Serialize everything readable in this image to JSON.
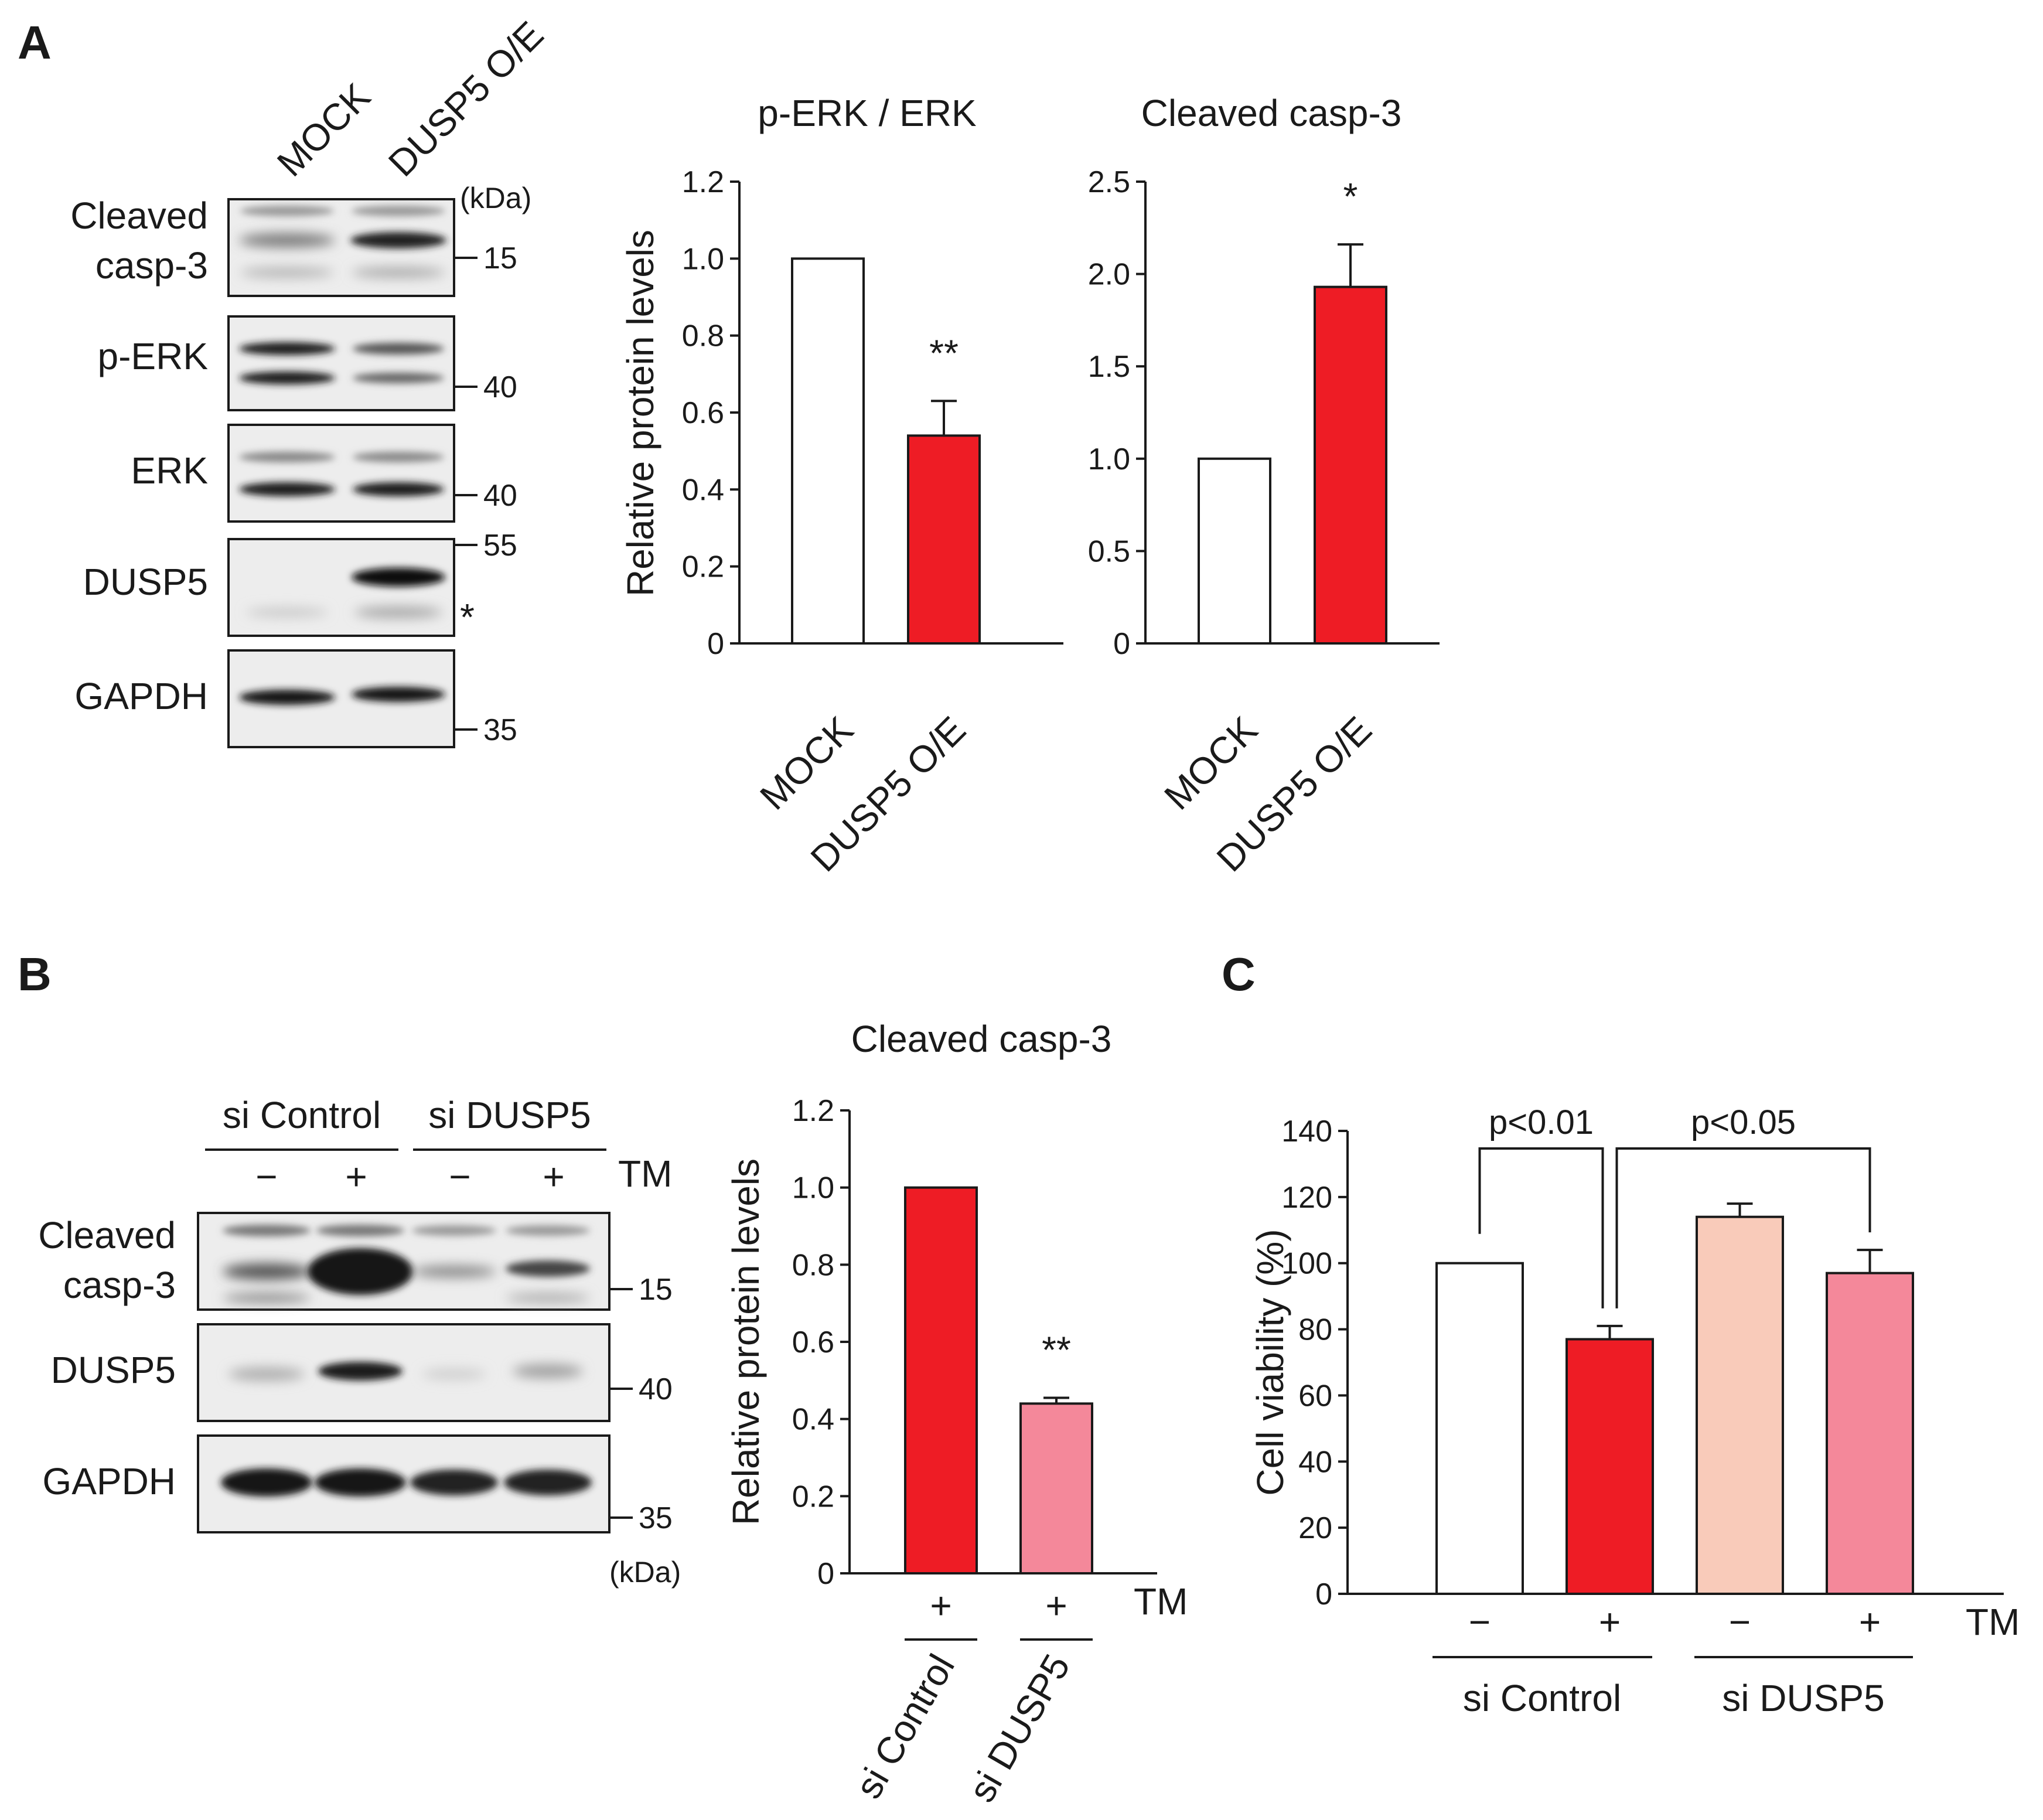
{
  "panelA": {
    "letter": "A",
    "lanes": [
      "MOCK",
      "DUSP5 O/E"
    ],
    "blots": [
      {
        "label_lines": [
          "Cleaved",
          "casp-3"
        ],
        "marker": "15"
      },
      {
        "label_lines": [
          "p-ERK"
        ],
        "marker": "40"
      },
      {
        "label_lines": [
          "ERK"
        ],
        "marker": "40"
      },
      {
        "label_lines": [
          "DUSP5"
        ],
        "marker": "55",
        "extra": "*"
      },
      {
        "label_lines": [
          "GAPDH"
        ],
        "marker": "35"
      }
    ],
    "kda": "(kDa)"
  },
  "panelB": {
    "letter": "B",
    "groups": [
      "si Control",
      "si DUSP5"
    ],
    "tm_signs": [
      "−",
      "+",
      "−",
      "+"
    ],
    "tm_label": "TM",
    "blots": [
      {
        "label_lines": [
          "Cleaved",
          "casp-3"
        ],
        "marker": "15"
      },
      {
        "label_lines": [
          "DUSP5"
        ],
        "marker": "40"
      },
      {
        "label_lines": [
          "GAPDH"
        ],
        "marker": "35"
      }
    ],
    "kda": "(kDa)"
  },
  "panelC": {
    "letter": "C"
  },
  "chart_data": [
    {
      "id": "A-perk",
      "type": "bar",
      "title": "p-ERK / ERK",
      "ylabel": "Relative protein levels",
      "categories": [
        "MOCK",
        "DUSP5 O/E"
      ],
      "values": [
        1.0,
        0.54
      ],
      "errors": [
        0,
        0.09
      ],
      "colors": [
        "#ffffff",
        "#ee1c25"
      ],
      "ylim": [
        0,
        1.2
      ],
      "yticks": [
        0,
        0.2,
        0.4,
        0.6,
        0.8,
        1.0,
        1.2
      ],
      "ytick_labels": [
        "0",
        "0.2",
        "0.4",
        "0.6",
        "0.8",
        "1.0",
        "1.2"
      ],
      "significance": [
        "",
        "**"
      ]
    },
    {
      "id": "A-casp",
      "type": "bar",
      "title": "Cleaved casp-3",
      "ylabel": "",
      "categories": [
        "MOCK",
        "DUSP5 O/E"
      ],
      "values": [
        1.0,
        1.93
      ],
      "errors": [
        0,
        0.23
      ],
      "colors": [
        "#ffffff",
        "#ee1c25"
      ],
      "ylim": [
        0,
        2.5
      ],
      "yticks": [
        0,
        0.5,
        1.0,
        1.5,
        2.0,
        2.5
      ],
      "ytick_labels": [
        "0",
        "0.5",
        "1.0",
        "1.5",
        "2.0",
        "2.5"
      ],
      "significance": [
        "",
        "*"
      ]
    },
    {
      "id": "B-casp",
      "type": "bar",
      "title": "Cleaved casp-3",
      "ylabel": "Relative protein levels",
      "categories": [
        "si Control",
        "si DUSP5"
      ],
      "treatment": [
        "+",
        "+"
      ],
      "treatment_label": "TM",
      "values": [
        1.0,
        0.44
      ],
      "errors": [
        0,
        0.015
      ],
      "colors": [
        "#ee1c25",
        "#f4889a"
      ],
      "ylim": [
        0,
        1.2
      ],
      "yticks": [
        0,
        0.2,
        0.4,
        0.6,
        0.8,
        1.0,
        1.2
      ],
      "ytick_labels": [
        "0",
        "0.2",
        "0.4",
        "0.6",
        "0.8",
        "1.0",
        "1.2"
      ],
      "significance": [
        "",
        "**"
      ]
    },
    {
      "id": "C-viability",
      "type": "bar",
      "title": "",
      "ylabel": "Cell viability (%)",
      "groups": [
        "si Control",
        "si DUSP5"
      ],
      "treatment": [
        "−",
        "+",
        "−",
        "+"
      ],
      "treatment_label": "TM",
      "values": [
        100,
        77,
        114,
        97
      ],
      "errors": [
        0,
        4,
        4,
        7
      ],
      "colors": [
        "#ffffff",
        "#ee1c25",
        "#f9cbba",
        "#f4889a"
      ],
      "ylim": [
        0,
        140
      ],
      "yticks": [
        0,
        20,
        40,
        60,
        80,
        100,
        120,
        140
      ],
      "ytick_labels": [
        "0",
        "20",
        "40",
        "60",
        "80",
        "100",
        "120",
        "140"
      ],
      "comparisons": [
        {
          "bars": [
            0,
            1
          ],
          "label": "p<0.01"
        },
        {
          "bars": [
            1,
            3
          ],
          "label": "p<0.05"
        }
      ]
    }
  ]
}
